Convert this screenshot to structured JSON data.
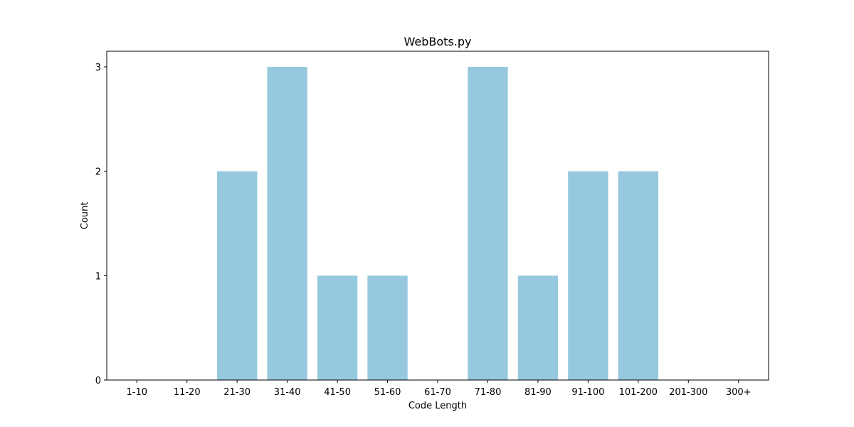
{
  "chart_data": {
    "type": "bar",
    "title": "WebBots.py",
    "xlabel": "Code Length",
    "ylabel": "Count",
    "categories": [
      "1-10",
      "11-20",
      "21-30",
      "31-40",
      "41-50",
      "51-60",
      "61-70",
      "71-80",
      "81-90",
      "91-100",
      "101-200",
      "201-300",
      "300+"
    ],
    "values": [
      0,
      0,
      2,
      3,
      1,
      1,
      0,
      3,
      1,
      2,
      2,
      0,
      0
    ],
    "ylim": [
      0,
      3.15
    ],
    "yticks": [
      0,
      1,
      2,
      3
    ],
    "grid": false,
    "legend": "none",
    "bar_color": "#96c9de"
  }
}
